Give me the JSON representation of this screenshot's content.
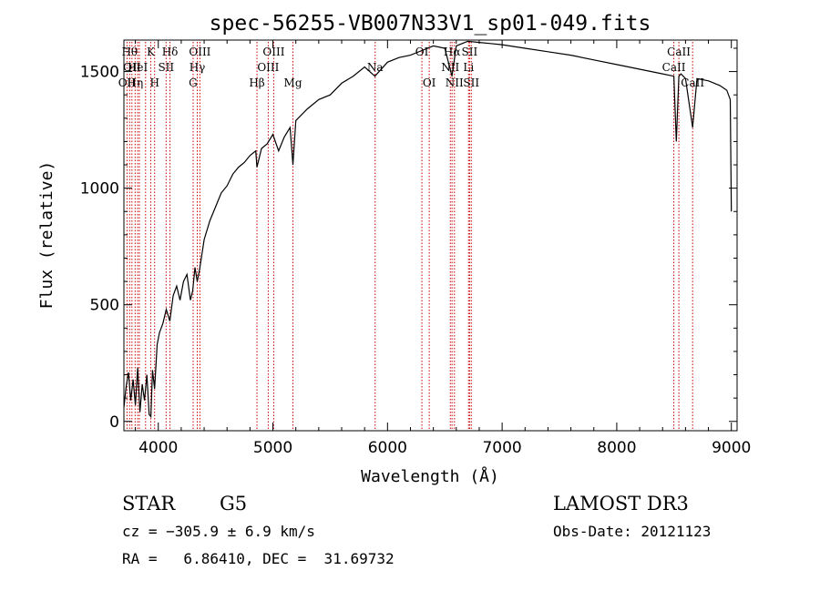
{
  "chart_data": {
    "type": "line",
    "title": "spec-56255-VB007N33V1_sp01-049.fits",
    "xlabel": "Wavelength (Å)",
    "ylabel": "Flux (relative)",
    "xlim": [
      3700,
      9050
    ],
    "ylim": [
      -40,
      1635
    ],
    "xticks": [
      4000,
      5000,
      6000,
      7000,
      8000,
      9000
    ],
    "xtick_labels": [
      "4000",
      "5000",
      "6000",
      "7000",
      "8000",
      "9000"
    ],
    "yticks": [
      0,
      500,
      1000,
      1500
    ],
    "ytick_labels": [
      "0",
      "500",
      "1000",
      "1500"
    ],
    "series": [
      {
        "name": "flux",
        "x": [
          3700,
          3720,
          3740,
          3760,
          3780,
          3800,
          3820,
          3840,
          3860,
          3880,
          3900,
          3920,
          3935,
          3950,
          3968,
          3990,
          4010,
          4040,
          4070,
          4101,
          4130,
          4160,
          4190,
          4220,
          4250,
          4280,
          4300,
          4320,
          4340,
          4360,
          4400,
          4450,
          4500,
          4550,
          4600,
          4650,
          4700,
          4750,
          4800,
          4850,
          4861,
          4900,
          4950,
          5000,
          5050,
          5100,
          5150,
          5175,
          5200,
          5300,
          5400,
          5500,
          5600,
          5700,
          5800,
          5890,
          6000,
          6100,
          6200,
          6300,
          6400,
          6500,
          6563,
          6600,
          6700,
          6800,
          6900,
          7000,
          7200,
          7400,
          7600,
          7800,
          8000,
          8200,
          8400,
          8498,
          8520,
          8542,
          8560,
          8600,
          8662,
          8700,
          8800,
          8900,
          8960,
          8990,
          9000
        ],
        "y": [
          60,
          150,
          210,
          90,
          180,
          70,
          230,
          40,
          160,
          90,
          200,
          30,
          20,
          220,
          140,
          330,
          380,
          420,
          480,
          430,
          540,
          580,
          520,
          600,
          630,
          520,
          560,
          660,
          600,
          650,
          780,
          860,
          920,
          980,
          1010,
          1060,
          1090,
          1110,
          1140,
          1160,
          1090,
          1170,
          1190,
          1230,
          1160,
          1220,
          1260,
          1100,
          1290,
          1340,
          1380,
          1400,
          1450,
          1480,
          1520,
          1480,
          1540,
          1560,
          1570,
          1590,
          1610,
          1600,
          1480,
          1610,
          1630,
          1625,
          1620,
          1615,
          1600,
          1585,
          1570,
          1550,
          1530,
          1510,
          1490,
          1480,
          1200,
          1480,
          1490,
          1470,
          1260,
          1470,
          1460,
          1440,
          1420,
          1380,
          900
        ]
      }
    ],
    "spectral_lines": [
      {
        "wavelength": 3727,
        "label": "OII",
        "row": 3
      },
      {
        "wavelength": 3750,
        "label": "Hθ",
        "row": 1
      },
      {
        "wavelength": 3770,
        "label": "OII",
        "row": 2
      },
      {
        "wavelength": 3798,
        "label": "Hη",
        "row": 3
      },
      {
        "wavelength": 3820,
        "label": "HeI",
        "row": 2
      },
      {
        "wavelength": 3835,
        "label": "",
        "row": 0
      },
      {
        "wavelength": 3889,
        "label": "",
        "row": 0
      },
      {
        "wavelength": 3934,
        "label": "K",
        "row": 1
      },
      {
        "wavelength": 3968,
        "label": "H",
        "row": 3
      },
      {
        "wavelength": 4068,
        "label": "SII",
        "row": 2
      },
      {
        "wavelength": 4102,
        "label": "Hδ",
        "row": 1
      },
      {
        "wavelength": 4304,
        "label": "G",
        "row": 3
      },
      {
        "wavelength": 4340,
        "label": "Hγ",
        "row": 2
      },
      {
        "wavelength": 4363,
        "label": "OIII",
        "row": 1
      },
      {
        "wavelength": 4861,
        "label": "Hβ",
        "row": 3
      },
      {
        "wavelength": 4959,
        "label": "OIII",
        "row": 2
      },
      {
        "wavelength": 5007,
        "label": "OIII",
        "row": 1
      },
      {
        "wavelength": 5175,
        "label": "Mg",
        "row": 3
      },
      {
        "wavelength": 5892,
        "label": "Na",
        "row": 2
      },
      {
        "wavelength": 6300,
        "label": "OI",
        "row": 1
      },
      {
        "wavelength": 6364,
        "label": "OI",
        "row": 3
      },
      {
        "wavelength": 6548,
        "label": "NII",
        "row": 2
      },
      {
        "wavelength": 6563,
        "label": "Hα",
        "row": 1
      },
      {
        "wavelength": 6584,
        "label": "NII",
        "row": 3
      },
      {
        "wavelength": 6707,
        "label": "Li",
        "row": 2
      },
      {
        "wavelength": 6716,
        "label": "SII",
        "row": 1
      },
      {
        "wavelength": 6731,
        "label": "SII",
        "row": 3
      },
      {
        "wavelength": 8498,
        "label": "CaII",
        "row": 2
      },
      {
        "wavelength": 8542,
        "label": "CaII",
        "row": 1
      },
      {
        "wavelength": 8662,
        "label": "CaII",
        "row": 3
      }
    ]
  },
  "info": {
    "object_class": "STAR",
    "subclass": "G5",
    "survey": "LAMOST DR3",
    "cz": "cz = −305.9 ± 6.9 km/s",
    "obs_date": "Obs-Date: 20121123",
    "coords": "RA =   6.86410, DEC =  31.69732"
  },
  "colors": {
    "line": "#000000",
    "marker": "#cc0000",
    "background": "#ffffff"
  }
}
